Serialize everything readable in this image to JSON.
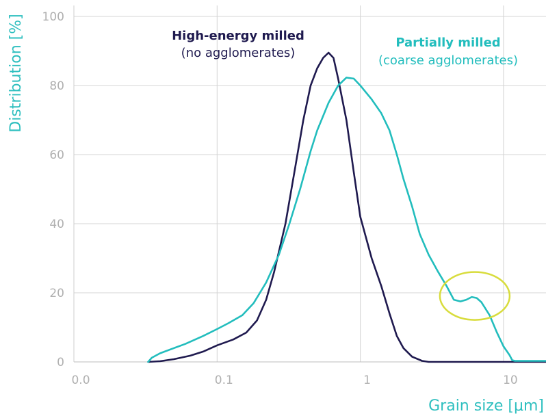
{
  "chart_data": {
    "type": "line",
    "xlabel": "Grain size [μm]",
    "ylabel": "Distribution [%]",
    "x_scale": "log",
    "xlim": [
      0.01,
      20
    ],
    "ylim": [
      0,
      100
    ],
    "x_ticks": [
      {
        "value": 0.01,
        "label": "0.0"
      },
      {
        "value": 0.1,
        "label": "0.1"
      },
      {
        "value": 1,
        "label": "1"
      },
      {
        "value": 10,
        "label": "10"
      }
    ],
    "y_ticks": [
      {
        "value": 0,
        "label": "0"
      },
      {
        "value": 20,
        "label": "20"
      },
      {
        "value": 40,
        "label": "40"
      },
      {
        "value": 60,
        "label": "60"
      },
      {
        "value": 80,
        "label": "80"
      },
      {
        "value": 100,
        "label": "100"
      }
    ],
    "grid": "vertical at x ticks, horizontal at y ticks",
    "colors": {
      "high_energy": "#1f1a4f",
      "partial": "#22bdbd",
      "highlight": "#d8dc3c",
      "grid": "#d4d4d4",
      "axis_text": "#2ebfbf",
      "tick_text": "#b0b0b0"
    },
    "series": [
      {
        "key": "high_energy",
        "points": [
          [
            0.033,
            0
          ],
          [
            0.04,
            0.2
          ],
          [
            0.05,
            0.8
          ],
          [
            0.065,
            1.8
          ],
          [
            0.08,
            3
          ],
          [
            0.1,
            4.8
          ],
          [
            0.13,
            6.5
          ],
          [
            0.16,
            8.5
          ],
          [
            0.19,
            12
          ],
          [
            0.22,
            18
          ],
          [
            0.25,
            26
          ],
          [
            0.3,
            40
          ],
          [
            0.35,
            56
          ],
          [
            0.4,
            70
          ],
          [
            0.45,
            80
          ],
          [
            0.5,
            85
          ],
          [
            0.55,
            88
          ],
          [
            0.6,
            89.5
          ],
          [
            0.65,
            88
          ],
          [
            0.7,
            82
          ],
          [
            0.8,
            70
          ],
          [
            0.9,
            55
          ],
          [
            1.0,
            42
          ],
          [
            1.2,
            30
          ],
          [
            1.4,
            22
          ],
          [
            1.6,
            14
          ],
          [
            1.8,
            7.5
          ],
          [
            2.0,
            4
          ],
          [
            2.3,
            1.5
          ],
          [
            2.7,
            0.3
          ],
          [
            3.0,
            0
          ],
          [
            5,
            0
          ],
          [
            10,
            0
          ],
          [
            20,
            0
          ]
        ]
      },
      {
        "key": "partial",
        "points": [
          [
            0.033,
            0
          ],
          [
            0.035,
            1.2
          ],
          [
            0.04,
            2.5
          ],
          [
            0.05,
            4
          ],
          [
            0.06,
            5.2
          ],
          [
            0.08,
            7.5
          ],
          [
            0.1,
            9.5
          ],
          [
            0.12,
            11.2
          ],
          [
            0.15,
            13.5
          ],
          [
            0.18,
            17
          ],
          [
            0.22,
            23
          ],
          [
            0.27,
            31
          ],
          [
            0.32,
            40
          ],
          [
            0.38,
            50
          ],
          [
            0.45,
            61
          ],
          [
            0.5,
            67
          ],
          [
            0.6,
            75
          ],
          [
            0.7,
            80
          ],
          [
            0.8,
            82.3
          ],
          [
            0.9,
            82
          ],
          [
            1.0,
            80
          ],
          [
            1.2,
            76
          ],
          [
            1.4,
            72
          ],
          [
            1.6,
            67
          ],
          [
            1.8,
            60
          ],
          [
            2.0,
            53
          ],
          [
            2.3,
            45
          ],
          [
            2.6,
            37
          ],
          [
            3.0,
            31
          ],
          [
            3.5,
            26
          ],
          [
            4.0,
            22
          ],
          [
            4.5,
            18
          ],
          [
            5.0,
            17.5
          ],
          [
            5.5,
            18
          ],
          [
            6.0,
            18.8
          ],
          [
            6.5,
            18.5
          ],
          [
            7.0,
            17.3
          ],
          [
            8.0,
            13.5
          ],
          [
            9.0,
            8.5
          ],
          [
            10.0,
            4.5
          ],
          [
            11.0,
            2
          ],
          [
            11.5,
            0.5
          ],
          [
            12.0,
            0.3
          ],
          [
            20,
            0.3
          ]
        ]
      }
    ],
    "annotations": [
      {
        "target": "high_energy",
        "title": "High-energy milled",
        "subtitle": "(no agglomerates)"
      },
      {
        "target": "partial",
        "title": "Partially milled",
        "subtitle": "(coarse agglomerates)"
      }
    ],
    "highlight_ellipse": {
      "center": [
        6.3,
        18.5
      ],
      "note": "secondary peak of partial series"
    }
  }
}
